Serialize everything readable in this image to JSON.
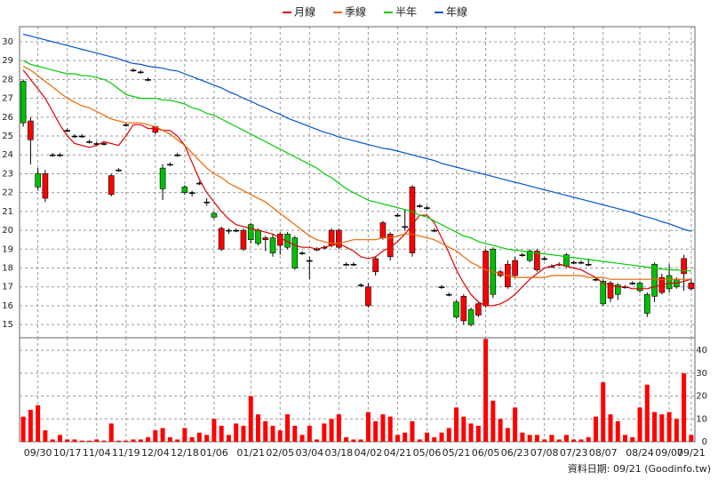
{
  "chart_data": [
    {
      "type": "candlestick",
      "categories": [
        null,
        null,
        "09/30",
        null,
        null,
        null,
        "10/17",
        null,
        null,
        null,
        "11/04",
        null,
        null,
        null,
        "11/19",
        null,
        null,
        null,
        "12/04",
        null,
        null,
        null,
        "12/18",
        null,
        null,
        null,
        "01/06",
        null,
        null,
        null,
        null,
        "01/21",
        null,
        null,
        null,
        "02/05",
        null,
        null,
        null,
        "03/04",
        null,
        null,
        null,
        "03/18",
        null,
        null,
        null,
        "04/02",
        null,
        null,
        null,
        "04/21",
        null,
        null,
        null,
        "05/06",
        null,
        null,
        null,
        "05/21",
        null,
        null,
        null,
        "06/05",
        null,
        null,
        null,
        "06/23",
        null,
        null,
        null,
        "07/08",
        null,
        null,
        null,
        "07/23",
        null,
        null,
        null,
        "08/07",
        null,
        null,
        null,
        null,
        "08/24",
        null,
        null,
        null,
        "09/07",
        null,
        null,
        "09/21"
      ],
      "open": [
        27.9,
        24.8,
        23.0,
        21.7,
        24.0,
        24.0,
        25.3,
        25.0,
        25.0,
        24.7,
        24.6,
        24.6,
        21.9,
        23.2,
        25.6,
        28.5,
        28.4,
        28.0,
        25.2,
        23.3,
        23.5,
        24.0,
        22.3,
        22.0,
        22.5,
        21.5,
        20.9,
        19.0,
        20.0,
        20.0,
        19.0,
        20.3,
        20.0,
        19.5,
        19.6,
        19.2,
        19.8,
        19.6,
        18.8,
        18.4,
        19.0,
        19.1,
        19.2,
        19.1,
        18.2,
        18.2,
        17.1,
        16.0,
        17.8,
        19.6,
        18.6,
        20.8,
        20.2,
        18.8,
        21.3,
        21.2,
        20.0,
        17.0,
        16.6,
        16.2,
        15.2,
        15.8,
        15.5,
        16.0,
        19.0,
        17.6,
        17.0,
        17.6,
        18.7,
        18.9,
        17.9,
        18.5,
        18.1,
        18.2,
        18.7,
        18.3,
        18.3,
        18.2,
        17.4,
        17.3,
        16.4,
        17.1,
        17.0,
        17.2,
        17.2,
        16.6,
        18.2,
        16.7,
        17.6,
        17.4,
        17.7,
        16.9
      ],
      "high": [
        28.0,
        26.0,
        23.3,
        23.2,
        24.1,
        24.1,
        25.4,
        25.1,
        25.1,
        24.8,
        24.7,
        24.7,
        23.0,
        23.3,
        25.7,
        28.6,
        28.5,
        28.1,
        25.5,
        23.5,
        23.6,
        24.1,
        22.4,
        22.1,
        22.6,
        21.7,
        21.0,
        20.2,
        20.1,
        20.1,
        20.1,
        20.4,
        20.1,
        19.7,
        19.8,
        19.9,
        19.9,
        19.7,
        18.9,
        18.6,
        19.1,
        19.2,
        20.1,
        20.1,
        18.3,
        18.3,
        17.2,
        17.2,
        18.6,
        20.5,
        19.9,
        20.9,
        21.1,
        22.4,
        21.4,
        21.3,
        20.1,
        17.1,
        16.7,
        16.3,
        16.6,
        15.9,
        16.2,
        19.0,
        19.1,
        17.9,
        18.4,
        18.6,
        18.8,
        19.0,
        19.0,
        18.6,
        18.2,
        18.3,
        18.8,
        18.4,
        18.4,
        18.5,
        17.5,
        17.4,
        17.3,
        17.2,
        17.1,
        17.3,
        17.3,
        16.7,
        18.3,
        17.7,
        18.2,
        17.5,
        18.7,
        17.4
      ],
      "low": [
        25.5,
        23.5,
        22.1,
        21.5,
        23.9,
        23.9,
        25.2,
        24.9,
        24.9,
        24.6,
        24.5,
        24.5,
        21.8,
        23.1,
        25.5,
        28.4,
        28.3,
        27.9,
        25.1,
        21.6,
        23.4,
        23.9,
        21.9,
        21.8,
        22.4,
        21.3,
        20.6,
        18.9,
        19.8,
        19.9,
        18.9,
        19.3,
        19.2,
        18.9,
        18.6,
        18.7,
        19.0,
        17.9,
        18.7,
        17.4,
        18.9,
        19.0,
        19.1,
        19.0,
        18.1,
        18.1,
        17.0,
        15.9,
        17.6,
        19.5,
        18.4,
        20.7,
        20.0,
        18.6,
        21.2,
        21.1,
        19.9,
        16.9,
        16.5,
        15.3,
        15.0,
        14.9,
        15.4,
        15.9,
        16.4,
        17.5,
        16.9,
        17.5,
        18.6,
        18.3,
        17.8,
        18.4,
        18.0,
        18.1,
        18.0,
        18.2,
        18.2,
        18.1,
        17.3,
        16.0,
        16.2,
        16.3,
        16.9,
        17.1,
        16.7,
        15.4,
        16.2,
        16.6,
        16.7,
        16.9,
        16.8,
        16.8
      ],
      "close": [
        25.7,
        25.8,
        22.3,
        23.0,
        24.0,
        24.0,
        25.3,
        25.0,
        25.0,
        24.7,
        24.6,
        24.6,
        22.9,
        23.2,
        25.6,
        28.5,
        28.4,
        28.0,
        25.5,
        22.2,
        23.5,
        24.0,
        22.0,
        22.0,
        22.5,
        21.5,
        20.7,
        20.1,
        20.0,
        20.0,
        20.0,
        19.5,
        19.3,
        19.6,
        18.8,
        19.8,
        19.1,
        18.0,
        18.8,
        18.4,
        19.0,
        19.1,
        20.0,
        20.0,
        18.2,
        18.2,
        17.1,
        17.0,
        18.5,
        20.4,
        19.8,
        20.8,
        20.2,
        22.3,
        21.3,
        21.2,
        20.0,
        17.0,
        16.6,
        15.4,
        16.5,
        15.0,
        16.1,
        18.9,
        16.6,
        17.8,
        18.2,
        18.4,
        18.7,
        18.4,
        18.9,
        18.5,
        18.1,
        18.2,
        18.1,
        18.3,
        18.3,
        18.2,
        17.4,
        16.1,
        17.2,
        16.6,
        17.0,
        17.2,
        16.8,
        15.6,
        16.5,
        17.5,
        16.9,
        17.0,
        18.5,
        17.2
      ],
      "up_color": "#ff0000",
      "down_color": "#00c000",
      "flat_color": "#000000",
      "series": [
        {
          "name": "月線",
          "color": "#dd0000",
          "values": [
            28.5,
            28.0,
            27.5,
            27.0,
            26.3,
            25.6,
            25.0,
            24.6,
            24.5,
            24.4,
            24.5,
            24.7,
            24.6,
            24.5,
            25.0,
            25.6,
            25.6,
            25.4,
            25.4,
            25.3,
            25.3,
            25.0,
            24.5,
            23.6,
            22.7,
            22.0,
            21.5,
            21.0,
            20.6,
            20.3,
            20.2,
            20.1,
            20.0,
            19.9,
            19.8,
            19.6,
            19.4,
            19.2,
            19.1,
            19.1,
            19.0,
            19.1,
            19.2,
            19.3,
            19.1,
            18.9,
            18.6,
            18.5,
            18.6,
            18.9,
            19.1,
            19.4,
            19.8,
            20.3,
            20.8,
            20.8,
            20.4,
            19.6,
            18.8,
            17.9,
            17.2,
            16.6,
            16.2,
            16.0,
            16.0,
            16.1,
            16.3,
            16.6,
            17.0,
            17.4,
            17.7,
            18.0,
            18.1,
            18.2,
            18.1,
            18.0,
            17.9,
            17.7,
            17.5,
            17.2,
            17.1,
            17.0,
            17.0,
            16.9,
            16.9,
            16.9,
            17.0,
            17.1,
            17.2,
            17.2,
            17.3,
            17.4
          ]
        },
        {
          "name": "季線",
          "color": "#ee6600",
          "values": [
            28.7,
            28.5,
            28.2,
            27.9,
            27.6,
            27.3,
            27.0,
            26.8,
            26.6,
            26.5,
            26.3,
            26.1,
            25.9,
            25.8,
            25.7,
            25.7,
            25.7,
            25.6,
            25.5,
            25.3,
            25.1,
            24.8,
            24.5,
            24.1,
            23.7,
            23.3,
            23.0,
            22.8,
            22.5,
            22.3,
            22.1,
            21.9,
            21.7,
            21.5,
            21.2,
            20.9,
            20.6,
            20.3,
            20.0,
            19.7,
            19.5,
            19.4,
            19.3,
            19.3,
            19.4,
            19.5,
            19.5,
            19.5,
            19.5,
            19.6,
            19.6,
            19.7,
            19.8,
            19.8,
            19.7,
            19.6,
            19.5,
            19.3,
            19.1,
            18.9,
            18.6,
            18.3,
            18.1,
            17.9,
            17.8,
            17.7,
            17.6,
            17.5,
            17.5,
            17.5,
            17.5,
            17.5,
            17.6,
            17.6,
            17.6,
            17.6,
            17.6,
            17.5,
            17.5,
            17.5,
            17.4,
            17.4,
            17.4,
            17.4,
            17.4,
            17.4,
            17.4,
            17.4,
            17.4,
            17.4,
            17.4,
            17.4
          ]
        },
        {
          "name": "半年",
          "color": "#00cc00",
          "values": [
            29.0,
            28.8,
            28.7,
            28.6,
            28.5,
            28.4,
            28.3,
            28.3,
            28.2,
            28.2,
            28.1,
            28.0,
            27.8,
            27.5,
            27.2,
            27.1,
            27.0,
            27.0,
            27.0,
            26.9,
            26.9,
            26.8,
            26.7,
            26.5,
            26.4,
            26.2,
            26.1,
            25.9,
            25.7,
            25.5,
            25.3,
            25.1,
            24.9,
            24.7,
            24.5,
            24.3,
            24.1,
            23.9,
            23.7,
            23.5,
            23.3,
            23.0,
            22.8,
            22.5,
            22.2,
            22.0,
            21.8,
            21.6,
            21.5,
            21.4,
            21.3,
            21.2,
            21.1,
            21.0,
            20.8,
            20.7,
            20.5,
            20.3,
            20.1,
            19.9,
            19.7,
            19.6,
            19.4,
            19.3,
            19.2,
            19.1,
            19.0,
            18.95,
            18.9,
            18.85,
            18.8,
            18.75,
            18.7,
            18.65,
            18.6,
            18.55,
            18.5,
            18.45,
            18.4,
            18.35,
            18.3,
            18.25,
            18.2,
            18.15,
            18.1,
            18.05,
            18.0,
            17.95,
            17.9,
            17.9,
            17.85,
            17.85
          ]
        },
        {
          "name": "年線",
          "color": "#0055cc",
          "values": [
            30.4,
            30.3,
            30.2,
            30.1,
            30.0,
            29.9,
            29.8,
            29.7,
            29.6,
            29.5,
            29.4,
            29.3,
            29.2,
            29.1,
            28.95,
            28.85,
            28.8,
            28.7,
            28.65,
            28.6,
            28.5,
            28.45,
            28.3,
            28.15,
            28.0,
            27.85,
            27.7,
            27.55,
            27.35,
            27.2,
            27.0,
            26.85,
            26.65,
            26.5,
            26.3,
            26.15,
            25.95,
            25.8,
            25.65,
            25.5,
            25.35,
            25.2,
            25.1,
            24.95,
            24.85,
            24.75,
            24.65,
            24.55,
            24.45,
            24.35,
            24.3,
            24.2,
            24.1,
            24.0,
            23.9,
            23.8,
            23.7,
            23.55,
            23.45,
            23.35,
            23.25,
            23.15,
            23.05,
            22.95,
            22.85,
            22.75,
            22.65,
            22.55,
            22.45,
            22.35,
            22.25,
            22.15,
            22.05,
            21.95,
            21.85,
            21.75,
            21.65,
            21.55,
            21.45,
            21.35,
            21.25,
            21.15,
            21.05,
            20.95,
            20.8,
            20.7,
            20.6,
            20.45,
            20.35,
            20.2,
            20.05,
            19.95
          ]
        }
      ],
      "ylim": [
        14.3,
        30.8
      ],
      "yticks": [
        15,
        16,
        17,
        18,
        19,
        20,
        21,
        22,
        23,
        24,
        25,
        26,
        27,
        28,
        29,
        30
      ],
      "grid": true,
      "annotations": [
        "資料日期: 09/21 (Goodinfo.tw)"
      ]
    },
    {
      "type": "bar",
      "color": "#ff0000",
      "values": [
        11,
        14,
        16,
        5,
        1,
        3,
        1,
        1,
        0.5,
        0.5,
        1,
        0.5,
        8,
        0.5,
        0.5,
        1,
        1,
        2,
        5,
        6,
        2,
        1,
        6,
        2,
        4,
        3,
        10,
        7,
        3,
        8,
        7,
        20,
        12,
        9,
        7,
        5,
        12,
        7,
        3,
        7,
        1,
        8,
        10,
        12,
        2,
        1,
        1,
        13,
        9,
        12,
        11,
        3,
        4,
        9,
        1,
        4,
        2,
        4,
        6,
        15,
        11,
        8,
        7,
        45,
        18,
        10,
        6,
        15,
        4,
        3,
        3,
        1,
        3,
        1,
        3,
        1,
        1,
        2,
        11,
        26,
        12,
        9,
        3,
        2,
        15,
        25,
        13,
        12,
        13,
        10,
        30,
        3
      ],
      "ylim": [
        0,
        45.5
      ],
      "yticks": [
        0,
        10,
        20,
        30,
        40
      ],
      "grid": true
    }
  ]
}
